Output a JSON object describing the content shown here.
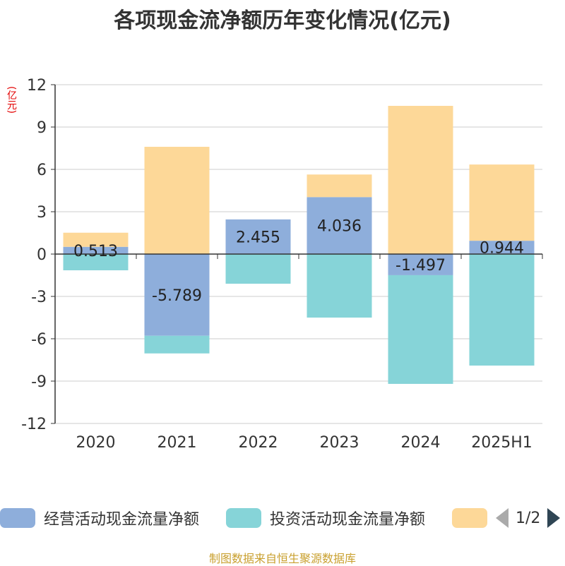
{
  "title": "各项现金流净额历年变化情况(亿元)",
  "unit_label": "(亿元)",
  "source_text": "制图数据来自恒生聚源数据库",
  "legend": {
    "items": [
      {
        "label": "经营活动现金流量净额",
        "color": "#8eaedb"
      },
      {
        "label": "投资活动现金流量净额",
        "color": "#86d4d8"
      },
      {
        "label": "",
        "color": "#fdd898"
      }
    ],
    "page": "1/2"
  },
  "chart_data": {
    "type": "bar",
    "stacked": true,
    "categories": [
      "2020",
      "2021",
      "2022",
      "2023",
      "2024",
      "2025H1"
    ],
    "ylim": [
      -12,
      12
    ],
    "yticks": [
      12,
      9,
      6,
      3,
      0,
      -3,
      -6,
      -9,
      -12
    ],
    "grid": true,
    "legend_position": "bottom",
    "series": [
      {
        "name": "经营活动现金流量净额",
        "color": "#8eaedb",
        "values": [
          0.513,
          -5.789,
          2.455,
          4.036,
          -1.497,
          0.944
        ],
        "labels": [
          "0.513",
          "-5.789",
          "2.455",
          "4.036",
          "-1.497",
          "0.944"
        ]
      },
      {
        "name": "投资活动现金流量净额",
        "color": "#86d4d8",
        "values": [
          -1.15,
          -1.25,
          -2.1,
          -4.5,
          -7.7,
          -7.9
        ]
      },
      {
        "color": "#fdd898",
        "values": [
          1.0,
          7.6,
          0.0,
          1.6,
          10.5,
          5.4
        ]
      }
    ]
  }
}
